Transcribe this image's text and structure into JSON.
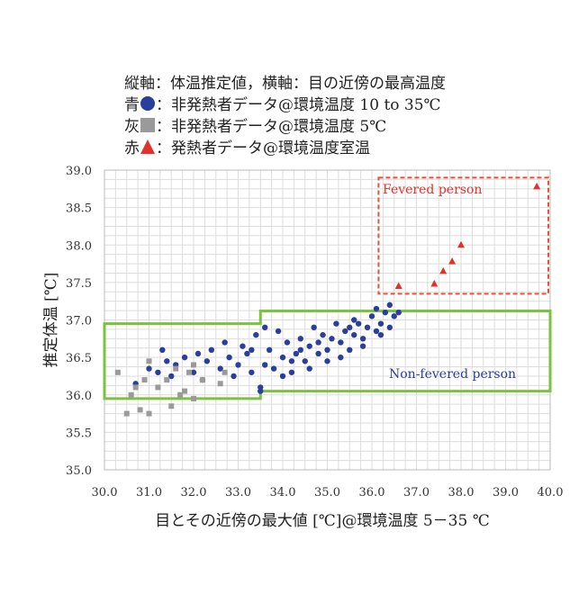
{
  "legend": {
    "line1": "縦軸：体温推定値，横軸：目の近傍の最高温度",
    "line2_prefix": "青",
    "line2_text": "：非発熱者データ@環境温度 10 to 35℃",
    "line3_prefix": "灰",
    "line3_text": "：非発熱者データ@環境温度 5℃",
    "line4_prefix": "赤",
    "line4_text": "：発熱者データ@環境温度室温"
  },
  "colors": {
    "blue": "#2a3f9b",
    "gray": "#9a9a9a",
    "red": "#e0322b",
    "green_box": "#7cc142",
    "fever_box": "#e8503a",
    "grid": "#dddddd"
  },
  "chart_data": {
    "type": "scatter",
    "xlabel": "目とその近傍の最大値 [℃]@環境温度 5－35 ℃",
    "ylabel": "推定体温 [℃]",
    "xlim": [
      30.0,
      40.0
    ],
    "ylim": [
      35.0,
      39.0
    ],
    "xticks": [
      "30.0",
      "31.0",
      "32.0",
      "33.0",
      "34.0",
      "35.0",
      "36.0",
      "37.0",
      "38.0",
      "39.0",
      "40.0"
    ],
    "yticks": [
      "35.0",
      "35.5",
      "36.0",
      "36.5",
      "37.0",
      "37.5",
      "38.0",
      "38.5",
      "39.0"
    ],
    "grid": true,
    "annotations": {
      "fevered": "Fevered person",
      "nonfevered": "Non-fevered person"
    },
    "series": [
      {
        "name": "非発熱者データ@環境温度 10 to 35℃",
        "color": "#2a3f9b",
        "marker": "circle",
        "points": [
          [
            30.7,
            36.15
          ],
          [
            31.0,
            36.35
          ],
          [
            31.2,
            36.3
          ],
          [
            31.3,
            36.6
          ],
          [
            31.4,
            36.45
          ],
          [
            31.5,
            36.25
          ],
          [
            31.6,
            36.4
          ],
          [
            31.8,
            36.5
          ],
          [
            32.0,
            36.3
          ],
          [
            32.1,
            36.55
          ],
          [
            32.2,
            36.2
          ],
          [
            32.3,
            36.45
          ],
          [
            32.4,
            36.6
          ],
          [
            32.6,
            36.35
          ],
          [
            32.7,
            36.7
          ],
          [
            32.8,
            36.5
          ],
          [
            33.0,
            36.4
          ],
          [
            33.1,
            36.65
          ],
          [
            33.2,
            36.55
          ],
          [
            33.3,
            36.3
          ],
          [
            33.4,
            36.8
          ],
          [
            33.5,
            36.1
          ],
          [
            33.5,
            36.05
          ],
          [
            33.6,
            36.4
          ],
          [
            33.7,
            36.6
          ],
          [
            33.8,
            36.35
          ],
          [
            33.9,
            36.85
          ],
          [
            34.0,
            36.5
          ],
          [
            34.1,
            36.7
          ],
          [
            34.2,
            36.3
          ],
          [
            34.3,
            36.55
          ],
          [
            34.4,
            36.75
          ],
          [
            34.5,
            36.45
          ],
          [
            34.6,
            36.65
          ],
          [
            34.7,
            36.9
          ],
          [
            34.8,
            36.55
          ],
          [
            34.9,
            36.8
          ],
          [
            35.0,
            36.6
          ],
          [
            35.1,
            36.75
          ],
          [
            35.2,
            36.95
          ],
          [
            35.3,
            36.7
          ],
          [
            35.4,
            36.85
          ],
          [
            35.5,
            36.6
          ],
          [
            35.6,
            36.8
          ],
          [
            35.7,
            36.95
          ],
          [
            35.8,
            36.75
          ],
          [
            35.9,
            36.9
          ],
          [
            36.0,
            37.05
          ],
          [
            36.1,
            36.85
          ],
          [
            36.2,
            36.95
          ],
          [
            36.3,
            37.1
          ],
          [
            36.4,
            36.9
          ],
          [
            36.5,
            37.05
          ],
          [
            36.6,
            37.1
          ],
          [
            34.2,
            36.45
          ],
          [
            34.6,
            36.35
          ],
          [
            35.0,
            36.45
          ],
          [
            35.5,
            36.9
          ],
          [
            36.1,
            37.15
          ],
          [
            36.4,
            37.2
          ],
          [
            32.9,
            36.25
          ],
          [
            33.3,
            36.6
          ],
          [
            34.0,
            36.25
          ],
          [
            34.8,
            36.7
          ],
          [
            35.3,
            36.5
          ],
          [
            35.8,
            36.65
          ],
          [
            36.2,
            36.8
          ],
          [
            33.6,
            36.9
          ],
          [
            34.4,
            36.6
          ],
          [
            35.6,
            37.0
          ]
        ]
      },
      {
        "name": "非発熱者データ@環境温度 5℃",
        "color": "#9a9a9a",
        "marker": "square",
        "points": [
          [
            30.3,
            36.3
          ],
          [
            30.5,
            35.75
          ],
          [
            30.6,
            36.0
          ],
          [
            30.7,
            36.1
          ],
          [
            30.8,
            35.8
          ],
          [
            30.9,
            36.2
          ],
          [
            31.0,
            35.75
          ],
          [
            31.0,
            36.45
          ],
          [
            31.2,
            36.1
          ],
          [
            31.4,
            36.2
          ],
          [
            31.5,
            35.85
          ],
          [
            31.6,
            36.35
          ],
          [
            31.7,
            36.0
          ],
          [
            31.8,
            36.05
          ],
          [
            31.9,
            36.3
          ],
          [
            32.0,
            35.95
          ],
          [
            32.0,
            36.4
          ],
          [
            32.2,
            36.2
          ],
          [
            32.6,
            36.15
          ],
          [
            32.7,
            36.3
          ]
        ]
      },
      {
        "name": "発熱者データ@環境温度室温",
        "color": "#e0322b",
        "marker": "triangle",
        "points": [
          [
            36.6,
            37.45
          ],
          [
            37.4,
            37.48
          ],
          [
            37.6,
            37.65
          ],
          [
            37.8,
            37.78
          ],
          [
            38.0,
            38.0
          ],
          [
            39.7,
            38.78
          ]
        ]
      }
    ],
    "regions": [
      {
        "label": "Non-fevered person",
        "color": "#7cc142",
        "x_from": 30.0,
        "x_mid": 33.5,
        "x_to": 40.0,
        "left_y": [
          35.95,
          36.95
        ],
        "right_y": [
          36.05,
          37.12
        ]
      },
      {
        "label": "Fevered person",
        "color": "#e8503a",
        "x": [
          36.15,
          40.0
        ],
        "y": [
          37.35,
          38.9
        ]
      }
    ]
  }
}
